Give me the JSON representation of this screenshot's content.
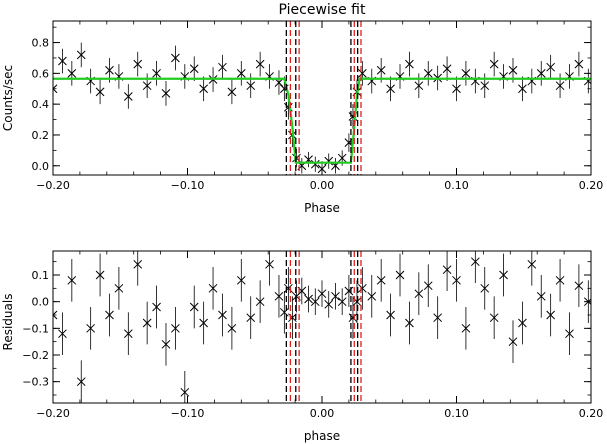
{
  "colors": {
    "data": "#000000",
    "model": "#22cc22",
    "ingress_lines": "#000000",
    "egress_lines": "#e02020",
    "axes": "#000000"
  },
  "chart_data": [
    {
      "type": "scatter",
      "title": "Piecewise fit",
      "xlabel": "Phase",
      "ylabel": "Counts/sec",
      "xlim": [
        -0.2,
        0.2
      ],
      "ylim": [
        -0.06,
        0.94
      ],
      "xticks": [
        -0.2,
        -0.1,
        0.0,
        0.1,
        0.2
      ],
      "xtick_labels": [
        "−0.20",
        "−0.10",
        "0.00",
        "0.10",
        "0.20"
      ],
      "yticks": [
        0.0,
        0.2,
        0.4,
        0.6,
        0.8
      ],
      "ytick_labels": [
        "0.0",
        "0.2",
        "0.4",
        "0.6",
        "0.8"
      ],
      "grid": false,
      "marker": "x",
      "vertical_lines": {
        "black_dashed": [
          -0.0265,
          -0.0195,
          0.0215,
          0.0265
        ],
        "red_dashed": [
          -0.0235,
          -0.017,
          0.024,
          0.029
        ]
      },
      "model": {
        "x": [
          -0.2,
          -0.028,
          -0.025,
          -0.022,
          -0.0195,
          0.0215,
          0.024,
          0.026,
          0.028,
          0.2
        ],
        "y": [
          0.565,
          0.565,
          0.46,
          0.25,
          0.02,
          0.02,
          0.25,
          0.46,
          0.565,
          0.565
        ]
      },
      "x": [
        -0.2,
        -0.193,
        -0.186,
        -0.179,
        -0.172,
        -0.165,
        -0.158,
        -0.151,
        -0.144,
        -0.137,
        -0.13,
        -0.123,
        -0.116,
        -0.109,
        -0.102,
        -0.095,
        -0.088,
        -0.081,
        -0.074,
        -0.067,
        -0.06,
        -0.053,
        -0.046,
        -0.039,
        -0.032,
        -0.028,
        -0.025,
        -0.022,
        -0.019,
        -0.015,
        -0.01,
        -0.005,
        0.0,
        0.005,
        0.01,
        0.015,
        0.02,
        0.023,
        0.026,
        0.03,
        0.037,
        0.044,
        0.051,
        0.058,
        0.065,
        0.072,
        0.079,
        0.086,
        0.093,
        0.1,
        0.107,
        0.114,
        0.121,
        0.128,
        0.135,
        0.142,
        0.149,
        0.156,
        0.163,
        0.17,
        0.177,
        0.184,
        0.191,
        0.198
      ],
      "y": [
        0.5,
        0.68,
        0.6,
        0.72,
        0.55,
        0.48,
        0.62,
        0.58,
        0.45,
        0.66,
        0.52,
        0.6,
        0.47,
        0.7,
        0.58,
        0.63,
        0.5,
        0.56,
        0.64,
        0.48,
        0.6,
        0.52,
        0.66,
        0.58,
        0.54,
        0.5,
        0.38,
        0.2,
        0.05,
        0.0,
        0.04,
        0.01,
        -0.02,
        0.03,
        0.0,
        0.05,
        0.15,
        0.32,
        0.48,
        0.6,
        0.55,
        0.62,
        0.5,
        0.58,
        0.66,
        0.52,
        0.6,
        0.57,
        0.63,
        0.5,
        0.6,
        0.55,
        0.52,
        0.66,
        0.58,
        0.62,
        0.5,
        0.55,
        0.6,
        0.64,
        0.52,
        0.58,
        0.66,
        0.55
      ],
      "yerr": [
        0.08,
        0.08,
        0.08,
        0.08,
        0.08,
        0.08,
        0.08,
        0.08,
        0.08,
        0.08,
        0.08,
        0.08,
        0.08,
        0.08,
        0.08,
        0.08,
        0.08,
        0.08,
        0.08,
        0.08,
        0.08,
        0.08,
        0.08,
        0.08,
        0.08,
        0.08,
        0.08,
        0.08,
        0.06,
        0.05,
        0.05,
        0.05,
        0.05,
        0.05,
        0.05,
        0.05,
        0.06,
        0.08,
        0.08,
        0.08,
        0.08,
        0.08,
        0.08,
        0.08,
        0.08,
        0.08,
        0.08,
        0.08,
        0.08,
        0.08,
        0.08,
        0.08,
        0.08,
        0.08,
        0.08,
        0.08,
        0.08,
        0.08,
        0.08,
        0.08,
        0.08,
        0.08,
        0.08,
        0.08
      ]
    },
    {
      "type": "scatter",
      "title": "",
      "xlabel": "phase",
      "ylabel": "Residuals",
      "xlim": [
        -0.2,
        0.2
      ],
      "ylim": [
        -0.38,
        0.19
      ],
      "xticks": [
        -0.2,
        -0.1,
        0.0,
        0.1,
        0.2
      ],
      "xtick_labels": [
        "−0.20",
        "−0.10",
        "0.00",
        "0.10",
        "0.20"
      ],
      "yticks": [
        -0.3,
        -0.2,
        -0.1,
        0.0,
        0.1
      ],
      "ytick_labels": [
        "−0.3",
        "−0.2",
        "−0.1",
        "0.0",
        "0.1"
      ],
      "grid": false,
      "marker": "x",
      "vertical_lines": {
        "black_dashed": [
          -0.0265,
          -0.0195,
          0.0215,
          0.0265
        ],
        "red_dashed": [
          -0.0235,
          -0.017,
          0.024,
          0.029
        ]
      },
      "x": [
        -0.2,
        -0.193,
        -0.186,
        -0.179,
        -0.172,
        -0.165,
        -0.158,
        -0.151,
        -0.144,
        -0.137,
        -0.13,
        -0.123,
        -0.116,
        -0.109,
        -0.102,
        -0.095,
        -0.088,
        -0.081,
        -0.074,
        -0.067,
        -0.06,
        -0.053,
        -0.046,
        -0.039,
        -0.032,
        -0.028,
        -0.025,
        -0.022,
        -0.019,
        -0.015,
        -0.01,
        -0.005,
        0.0,
        0.005,
        0.01,
        0.015,
        0.02,
        0.023,
        0.026,
        0.03,
        0.037,
        0.044,
        0.051,
        0.058,
        0.065,
        0.072,
        0.079,
        0.086,
        0.093,
        0.1,
        0.107,
        0.114,
        0.121,
        0.128,
        0.135,
        0.142,
        0.149,
        0.156,
        0.163,
        0.17,
        0.177,
        0.184,
        0.191,
        0.198
      ],
      "y": [
        -0.05,
        -0.12,
        0.08,
        -0.3,
        -0.1,
        0.1,
        -0.05,
        0.05,
        -0.12,
        0.14,
        -0.08,
        -0.02,
        -0.16,
        -0.1,
        -0.34,
        -0.02,
        -0.08,
        0.05,
        -0.05,
        -0.1,
        0.08,
        -0.06,
        0.0,
        0.14,
        0.02,
        -0.04,
        0.05,
        -0.06,
        0.02,
        0.04,
        0.01,
        0.0,
        0.03,
        -0.01,
        0.02,
        0.0,
        0.04,
        -0.06,
        0.0,
        0.05,
        0.02,
        0.08,
        -0.05,
        0.1,
        -0.08,
        0.03,
        0.06,
        -0.06,
        0.12,
        0.08,
        -0.1,
        0.15,
        0.05,
        -0.06,
        0.1,
        -0.15,
        -0.08,
        0.14,
        0.02,
        -0.05,
        0.08,
        -0.12,
        0.06,
        0.0
      ],
      "yerr": [
        0.08,
        0.08,
        0.08,
        0.08,
        0.08,
        0.08,
        0.08,
        0.08,
        0.08,
        0.08,
        0.08,
        0.08,
        0.08,
        0.08,
        0.08,
        0.08,
        0.08,
        0.08,
        0.08,
        0.08,
        0.08,
        0.08,
        0.08,
        0.08,
        0.08,
        0.08,
        0.08,
        0.08,
        0.06,
        0.05,
        0.05,
        0.05,
        0.05,
        0.05,
        0.05,
        0.05,
        0.06,
        0.08,
        0.08,
        0.08,
        0.08,
        0.08,
        0.08,
        0.08,
        0.08,
        0.08,
        0.08,
        0.08,
        0.08,
        0.08,
        0.08,
        0.08,
        0.08,
        0.08,
        0.08,
        0.08,
        0.08,
        0.08,
        0.08,
        0.08,
        0.08,
        0.08,
        0.08,
        0.08
      ]
    }
  ]
}
